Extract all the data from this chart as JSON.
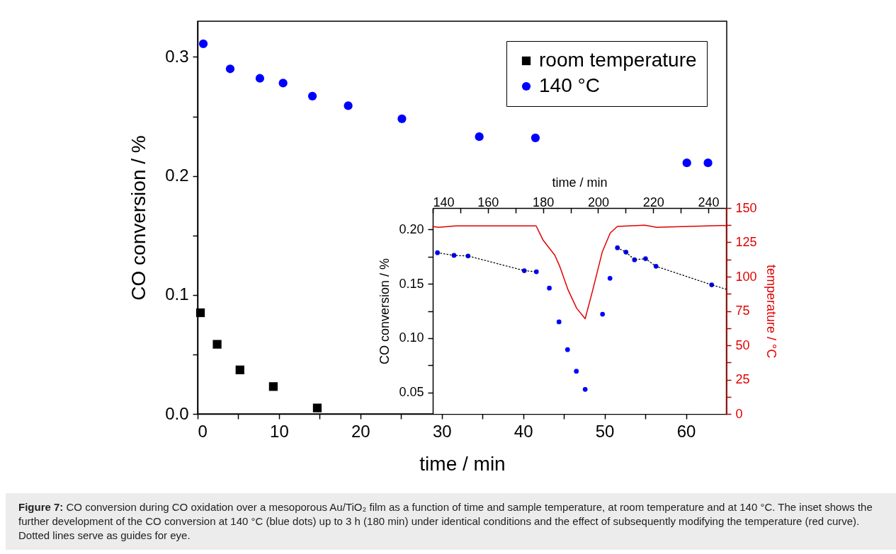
{
  "chart_data": [
    {
      "type": "scatter",
      "xlabel": "time / min",
      "ylabel": "CO conversion / %",
      "xlim": [
        0,
        65
      ],
      "xticks": [
        0,
        {
          "value": 5,
          "label": null
        },
        10,
        {
          "value": 15,
          "label": null
        },
        20,
        {
          "value": 25,
          "label": null
        },
        30,
        {
          "value": 35,
          "label": null
        },
        40,
        {
          "value": 45,
          "label": null
        },
        50,
        {
          "value": 55,
          "label": null
        },
        60
      ],
      "ylim": [
        0,
        0.33
      ],
      "yticks": [
        {
          "value": 0,
          "label": "0.0"
        },
        {
          "value": 0.05,
          "label": null
        },
        0.1,
        {
          "value": 0.15,
          "label": null
        },
        0.2,
        {
          "value": 0.25,
          "label": null
        },
        0.3
      ],
      "legend": "top right",
      "annotations": [
        "Figure 7: CO conversion during CO oxidation over a mesoporous Au/TiO₂ film as a function of time and sample temperature, at room temperature and at 140 °C. The inset shows the further development of the CO conversion at 140 °C (blue dots) up to 3 h (180 min) under identical conditions and the effect of subsequently modifying the temperature (red curve). Dotted lines serve as guides for eye."
      ],
      "series": [
        {
          "name": "room temperature",
          "color": "#000000",
          "marker": "square",
          "x": [
            0.35,
            2.4,
            5.2,
            9.3,
            14.7
          ],
          "values": [
            0.085,
            0.0585,
            0.037,
            0.023,
            0.005
          ]
        },
        {
          "name": "140 °C",
          "color": "#0000ff",
          "marker": "circle",
          "x": [
            0.7,
            4.0,
            7.65,
            10.5,
            14.1,
            18.5,
            25.1,
            34.6,
            41.5,
            60.1,
            62.7
          ],
          "values": [
            0.311,
            0.29,
            0.282,
            0.278,
            0.267,
            0.259,
            0.248,
            0.233,
            0.232,
            0.211,
            0.211
          ]
        }
      ]
    },
    {
      "type": "scatter",
      "xlabel": "time / min",
      "ylabel": "CO conversion / %",
      "y2label": "temperature / °C",
      "xlim": [
        140,
        246.4
      ],
      "xticks": [
        140,
        {
          "value": 150,
          "label": null
        },
        160,
        {
          "value": 170,
          "label": null
        },
        180,
        {
          "value": 190,
          "label": null
        },
        200,
        {
          "value": 210,
          "label": null
        },
        220,
        {
          "value": 230,
          "label": null
        },
        240
      ],
      "ylim": [
        0.0305,
        0.2195
      ],
      "yticks": [
        0.05,
        {
          "value": 0.075,
          "label": null
        },
        {
          "value": 0.1,
          "label": "0.10"
        },
        {
          "value": 0.125,
          "label": null
        },
        0.15,
        {
          "value": 0.175,
          "label": null
        },
        {
          "value": 0.2,
          "label": "0.20"
        }
      ],
      "y2lim": [
        0,
        150
      ],
      "y2ticks": [
        0,
        {
          "value": 12.5,
          "label": null
        },
        25,
        {
          "value": 37.5,
          "label": null
        },
        50,
        {
          "value": 62.5,
          "label": null
        },
        75,
        {
          "value": 87.5,
          "label": null
        },
        100,
        {
          "value": 112.5,
          "label": null
        },
        125,
        {
          "value": 137.5,
          "label": null
        },
        150
      ],
      "series": [
        {
          "color": "#0000ff",
          "marker": "circle",
          "x": [
            141.7,
            147.7,
            152.8,
            173.2,
            177.6,
            182.3,
            185.8,
            188.9,
            192.1,
            195.3,
            201.6,
            204.3,
            207.0,
            210.1,
            213.2,
            217.2,
            221.0,
            241.2
          ],
          "values": [
            0.1785,
            0.176,
            0.1755,
            0.162,
            0.161,
            0.146,
            0.115,
            0.0895,
            0.0697,
            0.053,
            0.122,
            0.155,
            0.183,
            0.179,
            0.172,
            0.173,
            0.166,
            0.149
          ]
        },
        {
          "type": "line",
          "color": "#000000",
          "line_style": "dotted",
          "marker": "none",
          "x": [
            141.7,
            147.7,
            152.8,
            173.2,
            177.6
          ],
          "values": [
            0.1785,
            0.176,
            0.1755,
            0.162,
            0.161
          ]
        },
        {
          "type": "line",
          "color": "#000000",
          "line_style": "dotted",
          "marker": "none",
          "x": [
            207.0,
            210.1,
            213.2,
            217.2,
            221.0,
            241.2,
            246.4
          ],
          "values": [
            0.183,
            0.179,
            0.172,
            0.173,
            0.166,
            0.149,
            0.145
          ]
        },
        {
          "type": "line",
          "axis": "y2",
          "color": "#e00000",
          "line_style": "solid",
          "marker": "none",
          "x": [
            140,
            142.3,
            148.3,
            177.5,
            180,
            184.3,
            186,
            189,
            192.2,
            195.3,
            198,
            201.5,
            204.4,
            207,
            216.9,
            221.2,
            246.4
          ],
          "values": [
            136.5,
            136,
            137,
            137,
            126.7,
            115.6,
            107.8,
            90.8,
            77,
            69.3,
            89.9,
            118,
            131.8,
            136.6,
            137.5,
            136,
            137.3
          ]
        }
      ]
    }
  ]
}
